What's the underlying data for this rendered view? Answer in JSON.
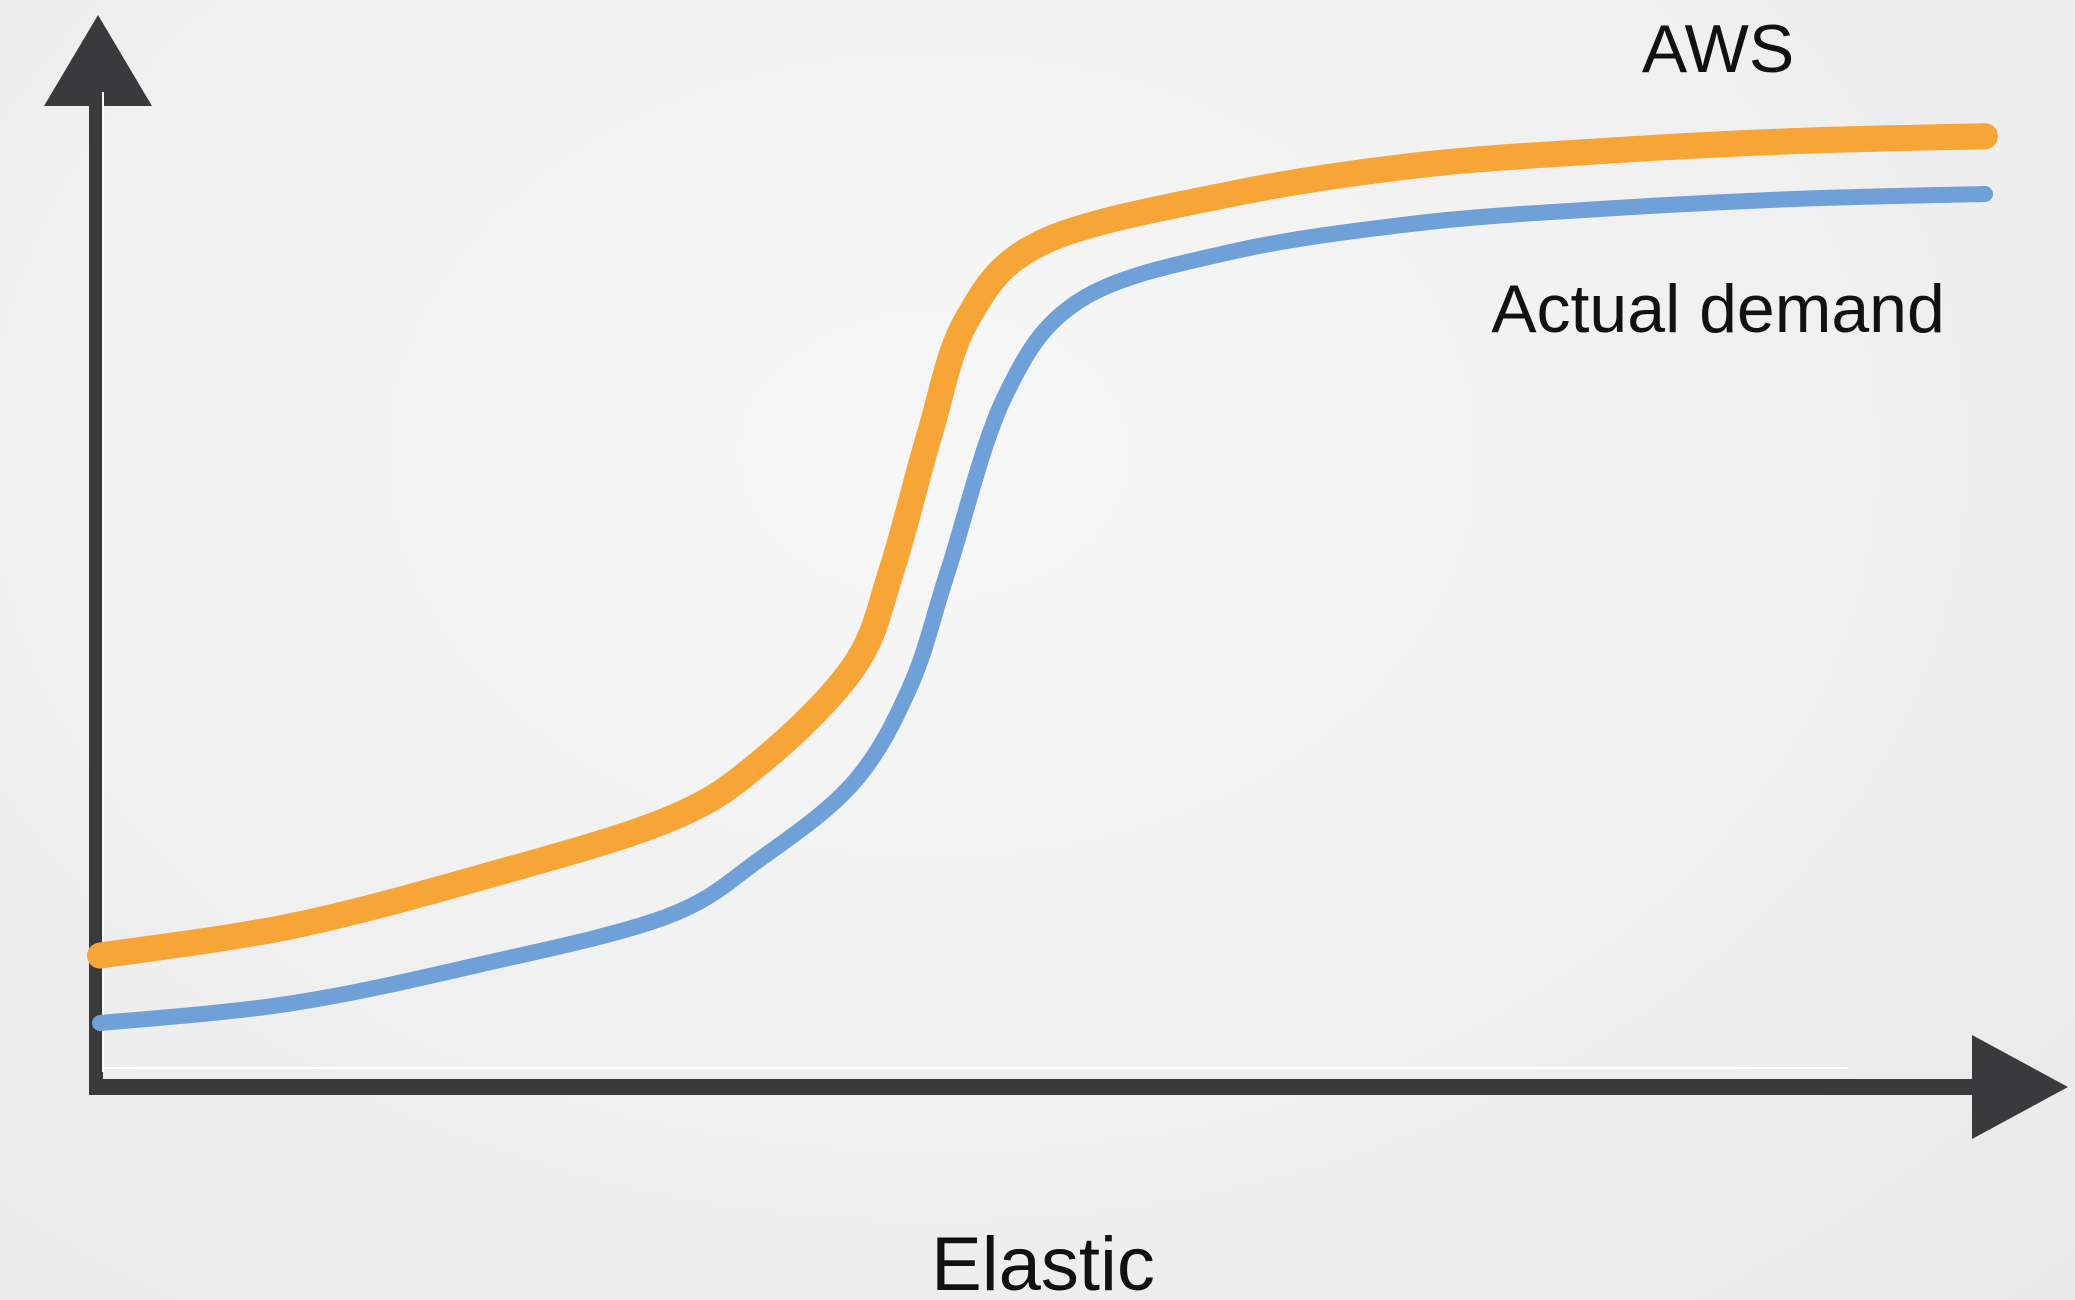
{
  "chart_data": {
    "type": "line",
    "title": "",
    "caption": "Elastic",
    "xlabel": "",
    "ylabel": "",
    "x_ticks": false,
    "y_ticks": false,
    "grid": false,
    "xlim": [
      0,
      100
    ],
    "ylim": [
      0,
      100
    ],
    "series": [
      {
        "name": "AWS",
        "color": "#f6a536",
        "points": [
          [
            0,
            10
          ],
          [
            10,
            13
          ],
          [
            20,
            18
          ],
          [
            30,
            24
          ],
          [
            35,
            30
          ],
          [
            40,
            40
          ],
          [
            42,
            50
          ],
          [
            44,
            64
          ],
          [
            46,
            76
          ],
          [
            50,
            84
          ],
          [
            60,
            89
          ],
          [
            70,
            92
          ],
          [
            80,
            93.5
          ],
          [
            90,
            94.5
          ],
          [
            100,
            95
          ]
        ]
      },
      {
        "name": "Actual demand",
        "color": "#6fa0d8",
        "points": [
          [
            0,
            3
          ],
          [
            10,
            5
          ],
          [
            20,
            9
          ],
          [
            30,
            14
          ],
          [
            35,
            20
          ],
          [
            40,
            28
          ],
          [
            43,
            38
          ],
          [
            45,
            50
          ],
          [
            48,
            68
          ],
          [
            52,
            78
          ],
          [
            60,
            83
          ],
          [
            70,
            86
          ],
          [
            80,
            87.5
          ],
          [
            90,
            88.5
          ],
          [
            100,
            89
          ]
        ]
      }
    ],
    "axis_color": "#3a3a3c"
  }
}
